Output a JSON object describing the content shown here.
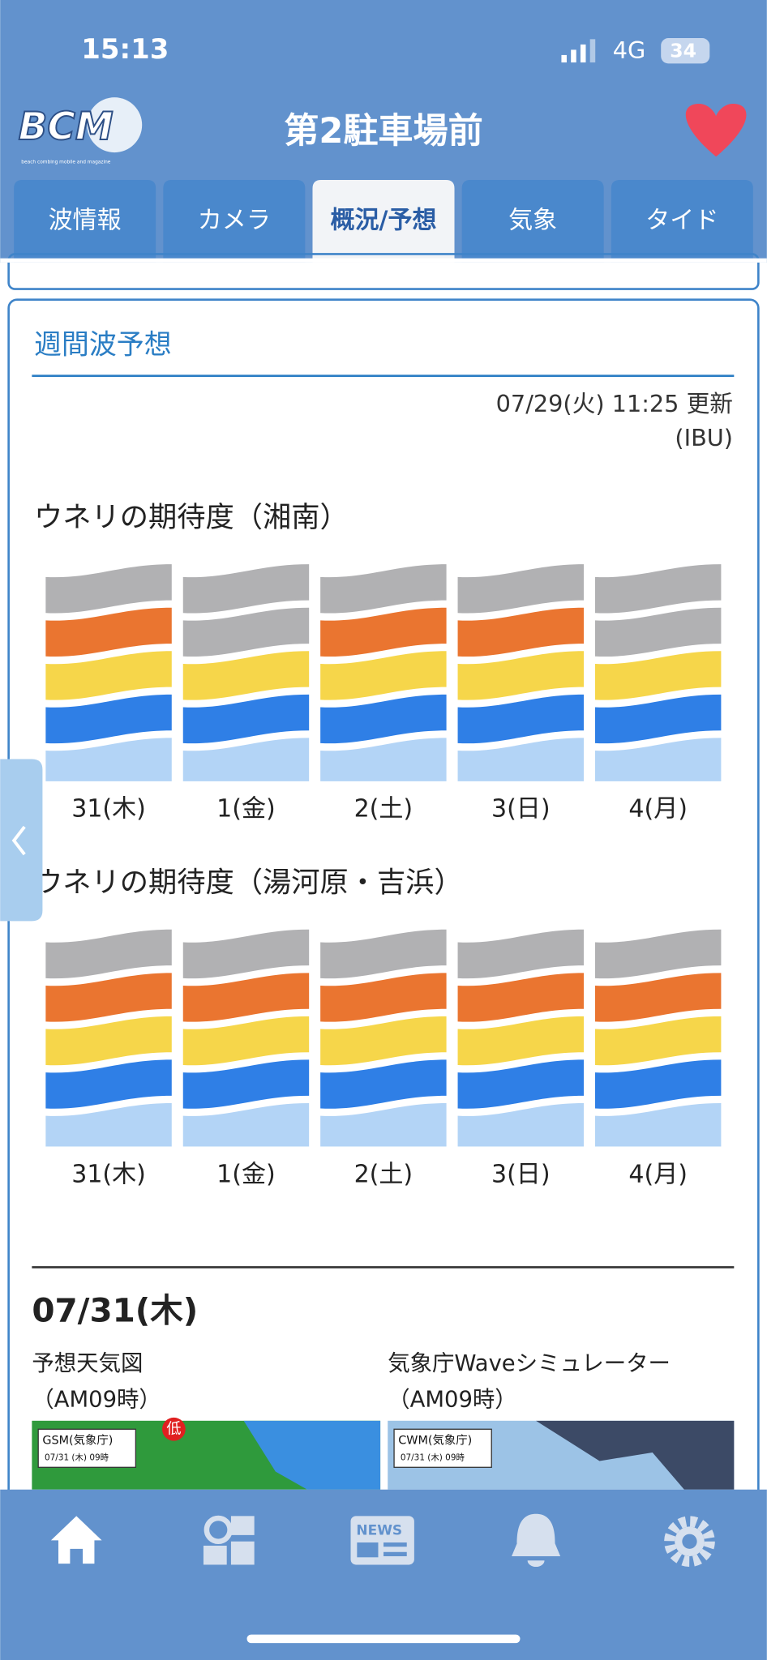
{
  "status": {
    "time": "15:13",
    "network": "4G",
    "battery": "34"
  },
  "header": {
    "logo": "BCM",
    "logo_sub": "beach combing mobile and magazine",
    "title": "第2駐車場前"
  },
  "tabs": [
    "波情報",
    "カメラ",
    "概況/予想",
    "気象",
    "タイド"
  ],
  "active_tab": 2,
  "section": {
    "title": "週間波予想",
    "updated": "07/29(火) 11:25 更新",
    "source": "(IBU)"
  },
  "forecasts": [
    {
      "title": "ウネリの期待度（湘南）",
      "days": [
        {
          "label": "31(木)",
          "bands": [
            "#b1b1b3",
            "#ea7530",
            "#f6d64a",
            "#2f7fe6",
            "#b3d4f6"
          ]
        },
        {
          "label": "1(金)",
          "bands": [
            "#b1b1b3",
            "#b1b1b3",
            "#f6d64a",
            "#2f7fe6",
            "#b3d4f6"
          ]
        },
        {
          "label": "2(土)",
          "bands": [
            "#b1b1b3",
            "#ea7530",
            "#f6d64a",
            "#2f7fe6",
            "#b3d4f6"
          ]
        },
        {
          "label": "3(日)",
          "bands": [
            "#b1b1b3",
            "#ea7530",
            "#f6d64a",
            "#2f7fe6",
            "#b3d4f6"
          ]
        },
        {
          "label": "4(月)",
          "bands": [
            "#b1b1b3",
            "#b1b1b3",
            "#f6d64a",
            "#2f7fe6",
            "#b3d4f6"
          ]
        }
      ]
    },
    {
      "title": "ウネリの期待度（湯河原・吉浜）",
      "days": [
        {
          "label": "31(木)",
          "bands": [
            "#b1b1b3",
            "#ea7530",
            "#f6d64a",
            "#2f7fe6",
            "#b3d4f6"
          ]
        },
        {
          "label": "1(金)",
          "bands": [
            "#b1b1b3",
            "#ea7530",
            "#f6d64a",
            "#2f7fe6",
            "#b3d4f6"
          ]
        },
        {
          "label": "2(土)",
          "bands": [
            "#b1b1b3",
            "#ea7530",
            "#f6d64a",
            "#2f7fe6",
            "#b3d4f6"
          ]
        },
        {
          "label": "3(日)",
          "bands": [
            "#b1b1b3",
            "#ea7530",
            "#f6d64a",
            "#2f7fe6",
            "#b3d4f6"
          ]
        },
        {
          "label": "4(月)",
          "bands": [
            "#b1b1b3",
            "#ea7530",
            "#f6d64a",
            "#2f7fe6",
            "#b3d4f6"
          ]
        }
      ]
    }
  ],
  "day": {
    "date": "07/31(木)",
    "panels": [
      {
        "title": "予想天気図",
        "time": "（AM09時）",
        "map_label": "GSM(気象庁)",
        "map_time": "07/31 (木) 09時",
        "low": "低"
      },
      {
        "title": "気象庁Waveシミュレーター",
        "time": "（AM09時）",
        "map_label": "CWM(気象庁)",
        "map_time": "07/31 (木) 09時"
      }
    ]
  },
  "nav": {
    "news": "NEWS"
  }
}
